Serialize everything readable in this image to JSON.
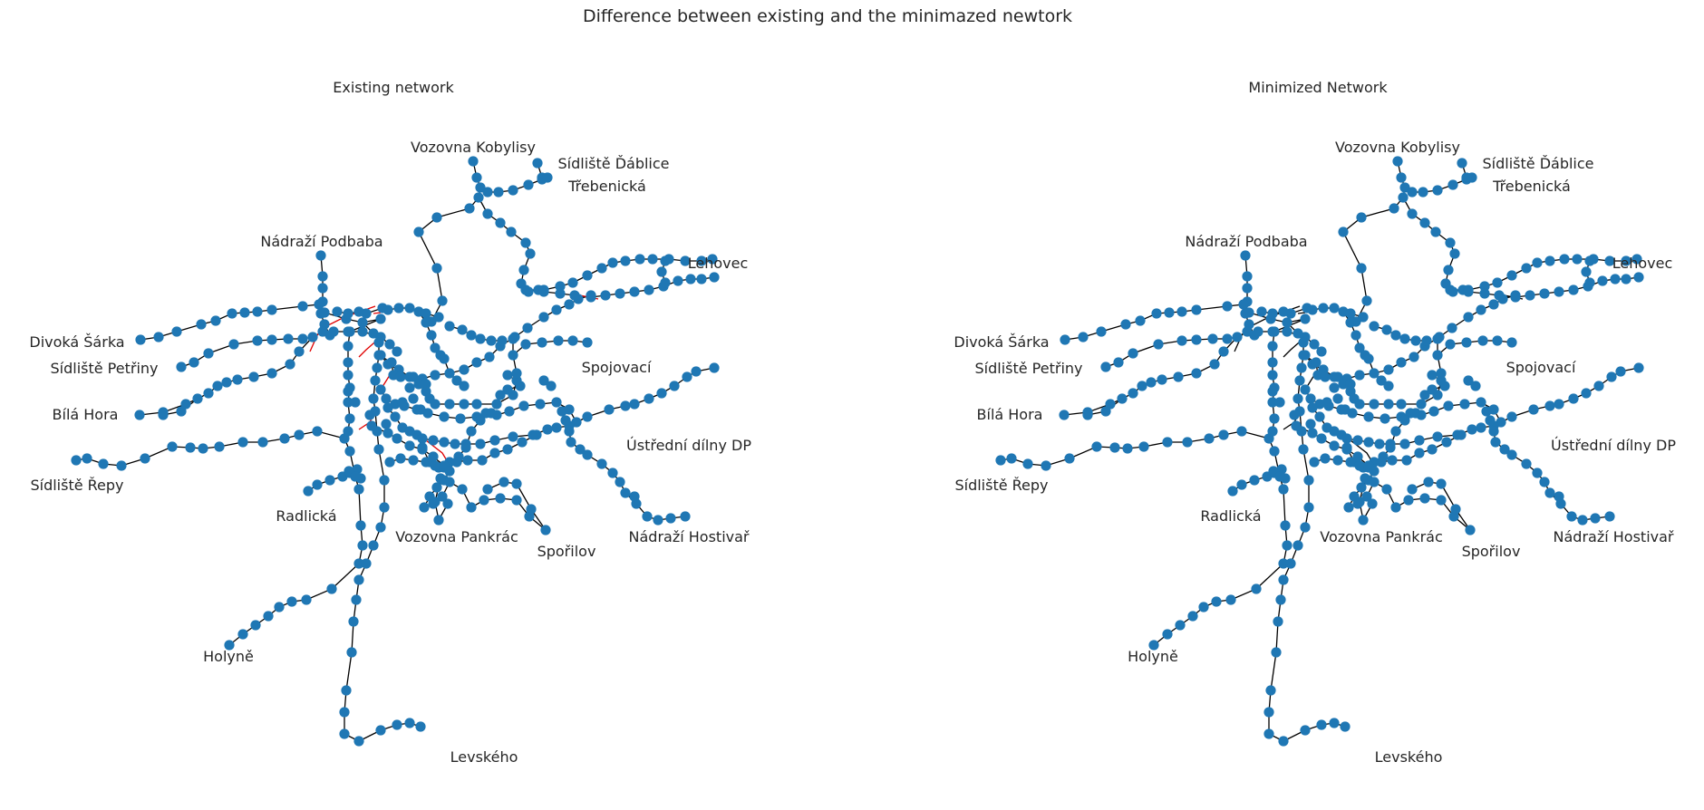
{
  "figure": {
    "title": "Difference between existing and the minimazed newtork"
  },
  "panels": [
    {
      "title": "Existing network",
      "show_diff_edges": true,
      "stations": [
        "Vozovna Kobylisy",
        "Sídliště Ďáblice",
        "Třebenická",
        "Nádraží Podbaba",
        "Lehovec",
        "Divoká Šárka",
        "Sídliště Petřiny",
        "Spojovací",
        "Bílá Hora",
        "Ústřední dílny DP",
        "Sídliště Řepy",
        "Radlická",
        "Vozovna Pankrác",
        "Nádraží Hostivař",
        "Spořilov",
        "Holyně",
        "Levského"
      ]
    },
    {
      "title": "Minimized Network",
      "show_diff_edges": false,
      "stations": [
        "Vozovna Kobylisy",
        "Sídliště Ďáblice",
        "Třebenická",
        "Nádraží Podbaba",
        "Lehovec",
        "Divoká Šárka",
        "Sídliště Petřiny",
        "Spojovací",
        "Bílá Hora",
        "Ústřední dílny DP",
        "Sídliště Řepy",
        "Radlická",
        "Vozovna Pankrác",
        "Nádraží Hostivař",
        "Spořilov",
        "Holyně",
        "Levského"
      ]
    }
  ],
  "colors": {
    "node": "#1f77b4",
    "edge": "#000000",
    "diff_edge": "#e00000",
    "text": "#262626"
  }
}
